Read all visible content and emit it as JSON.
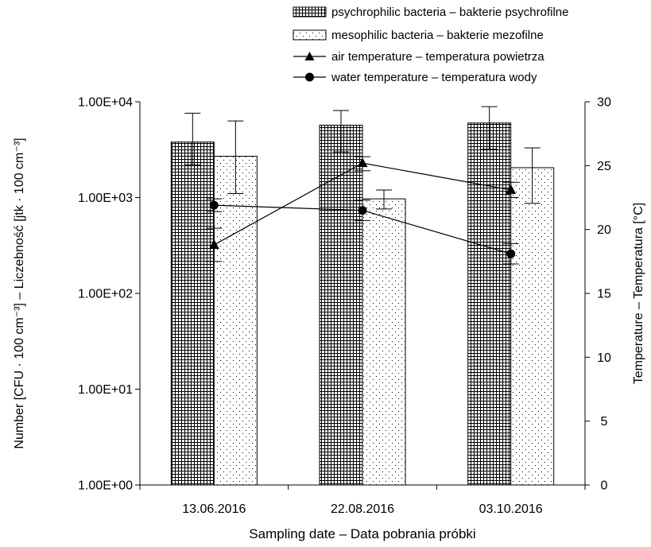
{
  "chart_data": {
    "type": "bar",
    "categories": [
      "13.06.2016",
      "22.08.2016",
      "03.10.2016"
    ],
    "xlabel": "Sampling date – Data pobrania próbki",
    "ylabel_left": "Number [CFU · 100 cm⁻³] – Liczebność [jtk · 100 cm⁻³]",
    "ylabel_right": "Temperature – Temperatura [°C]",
    "y_left": {
      "scale": "log",
      "ylim": [
        1,
        10000
      ],
      "tick_values": [
        1,
        10,
        100,
        1000,
        10000
      ],
      "tick_labels": [
        "1.00E+00",
        "1.00E+01",
        "1.00E+02",
        "1.00E+03",
        "1.00E+04"
      ]
    },
    "y_right": {
      "scale": "linear",
      "ylim": [
        0,
        30
      ],
      "tick_values": [
        0,
        5,
        10,
        15,
        20,
        25,
        30
      ],
      "tick_labels": [
        "0",
        "5",
        "10",
        "15",
        "20",
        "25",
        "30"
      ]
    },
    "bar_series": [
      {
        "name": "psychrophilic bacteria – bakterie psychrofilne",
        "pattern": "grid",
        "values": [
          3800,
          5700,
          6000
        ],
        "err_low": [
          2200,
          3000,
          3200
        ],
        "err_high": [
          7600,
          8100,
          8900
        ]
      },
      {
        "name": "mesophilic bacteria – bakterie mezofilne",
        "pattern": "dots",
        "values": [
          2700,
          970,
          2050
        ],
        "err_low": [
          1100,
          760,
          870
        ],
        "err_high": [
          6300,
          1200,
          3300
        ]
      }
    ],
    "line_series": [
      {
        "name": "air temperature – temperatura powietrza",
        "marker": "triangle",
        "values": [
          18.8,
          25.2,
          23.1
        ],
        "err_low": [
          17.5,
          24.6,
          22.5
        ],
        "err_high": [
          20.1,
          25.7,
          23.7
        ]
      },
      {
        "name": "water temperature – temperatura wody",
        "marker": "circle",
        "values": [
          21.9,
          21.5,
          18.1
        ],
        "err_low": [
          21.4,
          20.7,
          17.3
        ],
        "err_high": [
          22.4,
          22.3,
          18.9
        ]
      }
    ],
    "legend_position": "top-right",
    "grid": false
  }
}
